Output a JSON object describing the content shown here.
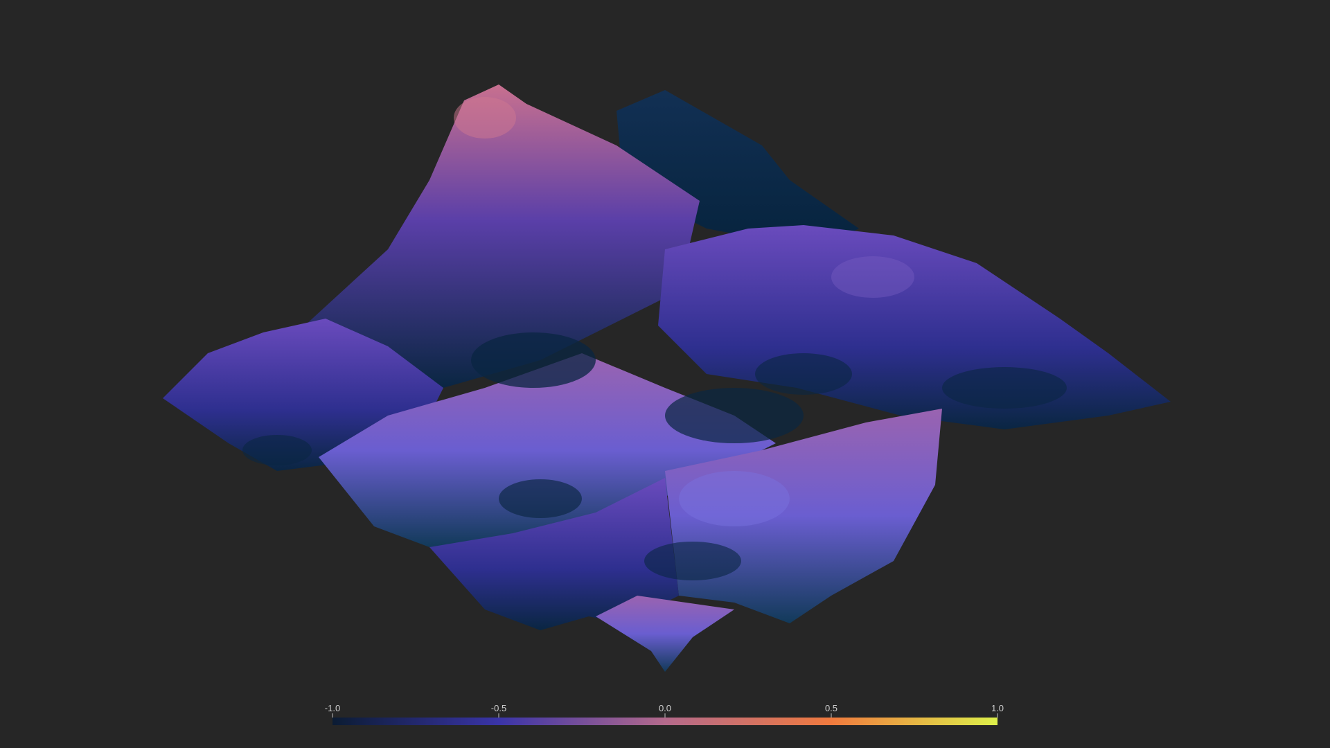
{
  "colormap": {
    "name": "plasma-like",
    "stops": [
      {
        "value": -1.0,
        "color": "#0b1c33"
      },
      {
        "value": -0.5,
        "color": "#3a34a8"
      },
      {
        "value": 0.0,
        "color": "#b46a8c"
      },
      {
        "value": 0.5,
        "color": "#f07a3e"
      },
      {
        "value": 1.0,
        "color": "#ddf04a"
      }
    ]
  },
  "colorbar": {
    "ticks": [
      {
        "value": -1.0,
        "label": "-1.0"
      },
      {
        "value": -0.5,
        "label": "-0.5"
      },
      {
        "value": 0.0,
        "label": "0.0"
      },
      {
        "value": 0.5,
        "label": "0.5"
      },
      {
        "value": 1.0,
        "label": "1.0"
      }
    ]
  },
  "colors": {
    "background": "#262626",
    "surface_shadow": "#0a2440",
    "surface_mid": "#3b36a6",
    "surface_peak": "#c9708e"
  }
}
